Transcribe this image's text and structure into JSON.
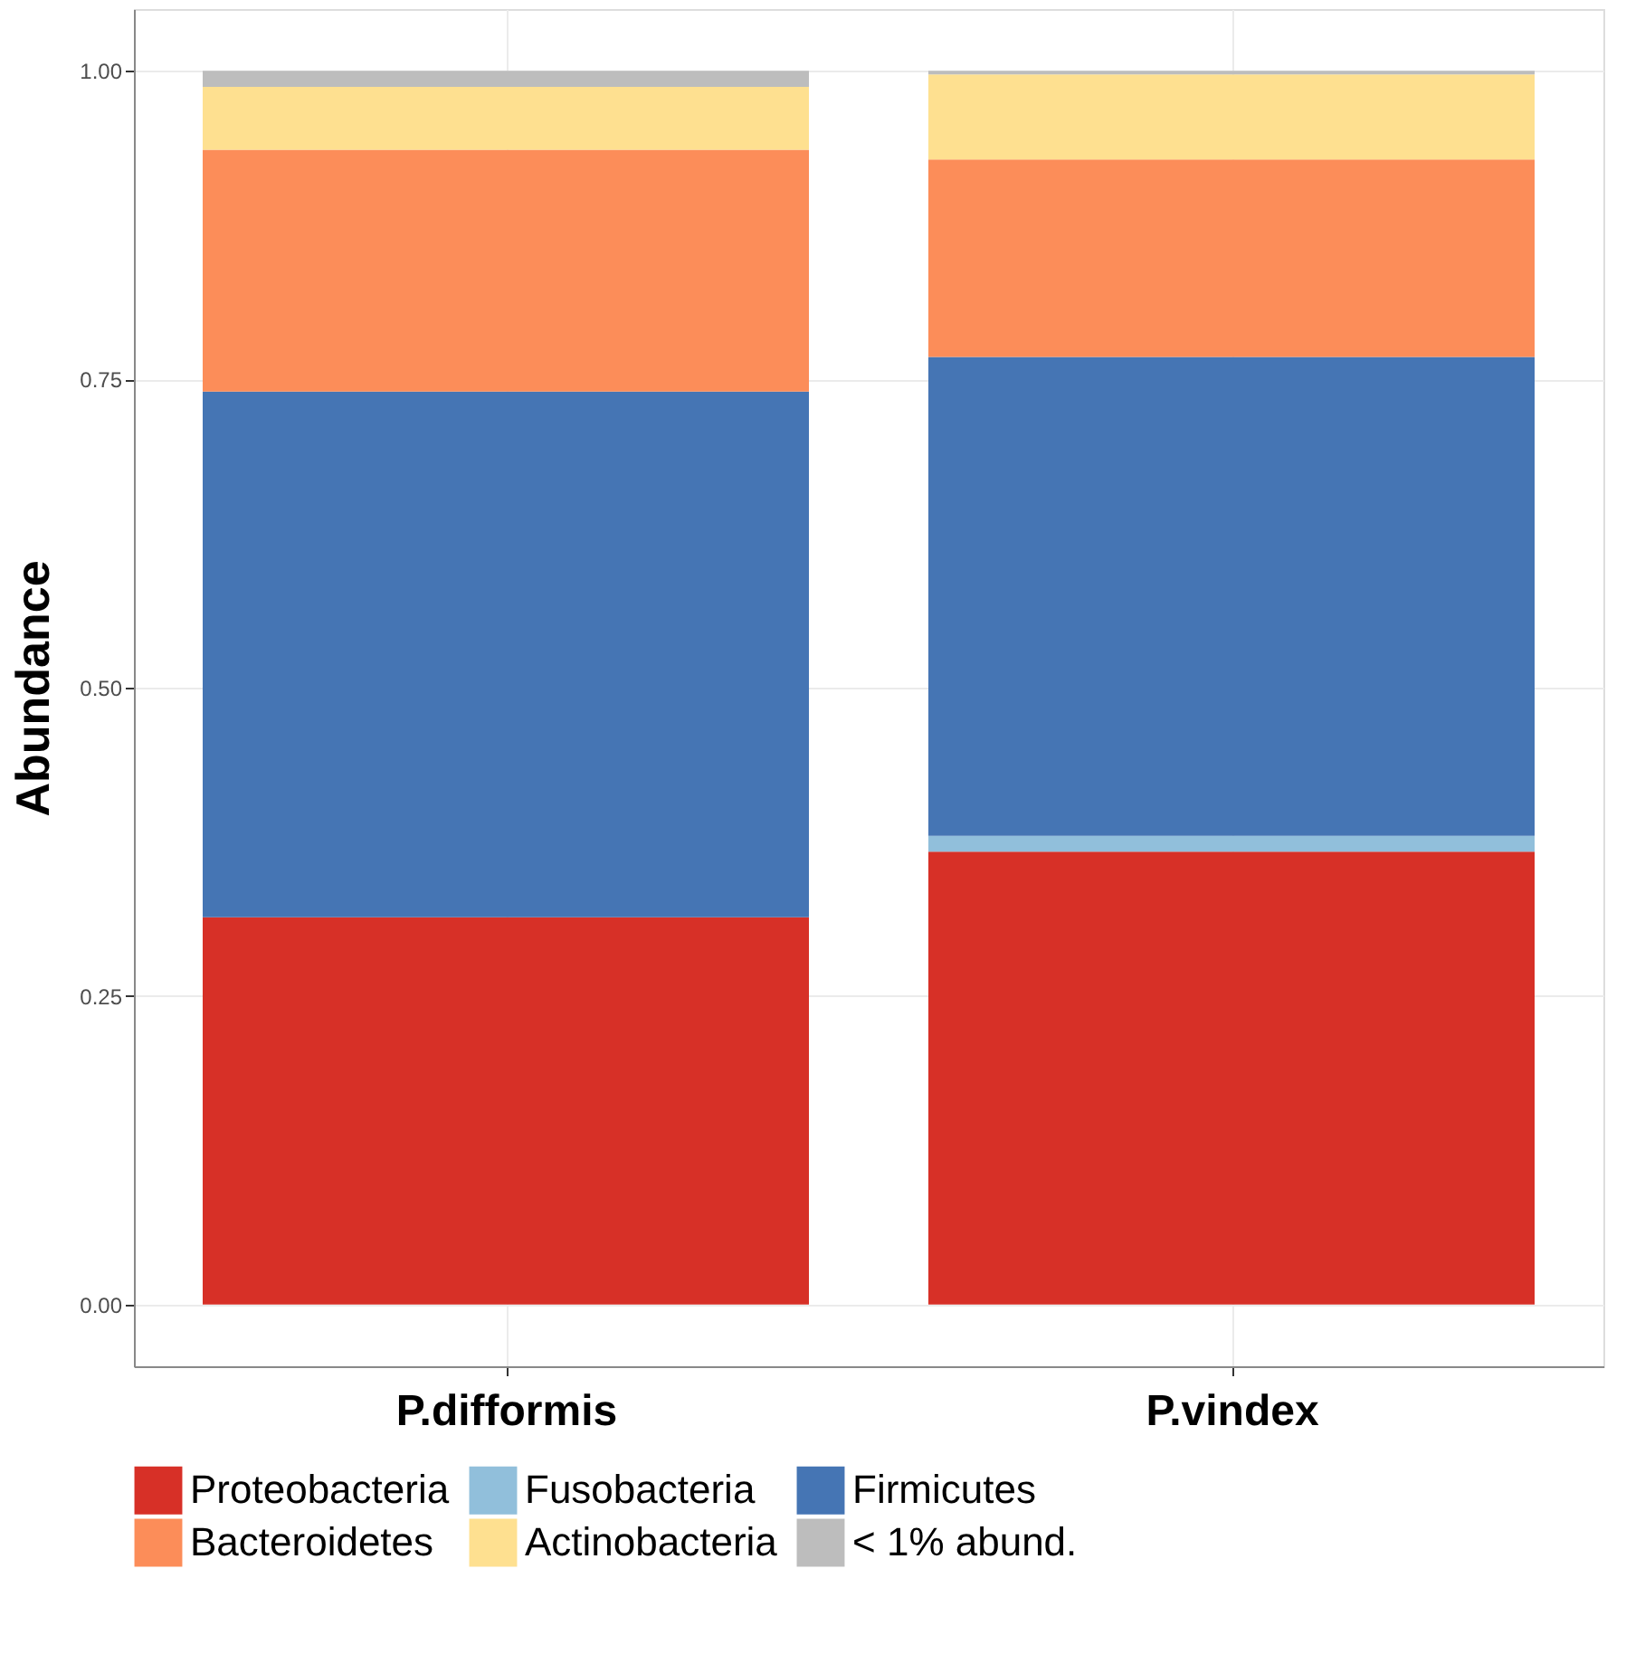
{
  "chart_data": {
    "type": "bar",
    "stacked": true,
    "ylabel": "Abundance",
    "categories": [
      "P.difformis",
      "P.vindex"
    ],
    "series": [
      {
        "name": "Proteobacteria",
        "color": "#d73027",
        "values": [
          0.314,
          0.367
        ]
      },
      {
        "name": "Fusobacteria",
        "color": "#91bfdb",
        "values": [
          0,
          0.013
        ]
      },
      {
        "name": "Firmicutes",
        "color": "#4575b4",
        "values": [
          0.426,
          0.388
        ]
      },
      {
        "name": "Bacteroidetes",
        "color": "#fc8d59",
        "values": [
          0.196,
          0.16
        ]
      },
      {
        "name": "Actinobacteria",
        "color": "#fee090",
        "values": [
          0.051,
          0.069
        ]
      },
      {
        "name": "< 1% abund.",
        "color": "#bdbdbd",
        "values": [
          0.013,
          0.003
        ]
      }
    ],
    "ylim": [
      -0.05,
      1.05
    ],
    "yticks": [
      {
        "value": 0,
        "label": "0.00"
      },
      {
        "value": 0.25,
        "label": "0.25"
      },
      {
        "value": 0.5,
        "label": "0.50"
      },
      {
        "value": 0.75,
        "label": "0.75"
      },
      {
        "value": 1,
        "label": "1.00"
      }
    ],
    "grid": true,
    "legend": "bottom"
  }
}
